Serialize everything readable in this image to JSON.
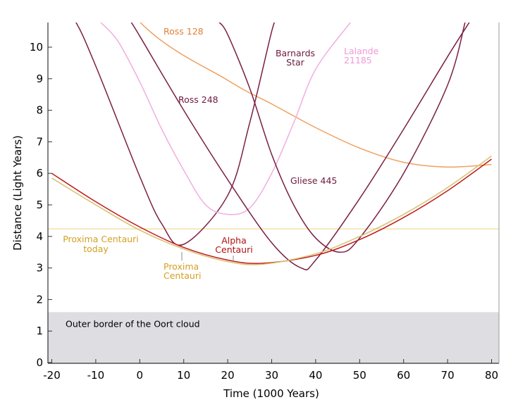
{
  "chart_data": {
    "type": "line",
    "xlabel": "Time (1000 Years)",
    "ylabel": "Distance (Light Years)",
    "xlim": [
      -21,
      81
    ],
    "ylim": [
      0,
      10.8
    ],
    "x_ticks": [
      -20,
      -10,
      0,
      10,
      20,
      30,
      40,
      50,
      60,
      70,
      80
    ],
    "x_tick_labels": [
      "-20",
      "-10",
      "0",
      "10",
      "20",
      "30",
      "40",
      "50",
      "60",
      "70",
      "80"
    ],
    "y_ticks": [
      0,
      1,
      2,
      3,
      4,
      5,
      6,
      7,
      8,
      9,
      10
    ],
    "y_tick_labels": [
      "0",
      "1",
      "2",
      "3",
      "4",
      "5",
      "6",
      "7",
      "8",
      "9",
      "10"
    ],
    "reference_line": {
      "y": 4.24,
      "label": [
        "Proxima Centauri",
        "today"
      ],
      "color": "#f0dfa0"
    },
    "shaded_region": {
      "y_from": 0,
      "y_to": 1.6,
      "label": "Outer border of the Oort cloud",
      "color": "#dddde2"
    },
    "series": [
      {
        "name": "Ross 128",
        "label_lines": [
          "Ross 128"
        ],
        "color": "#f0a060",
        "label_color": "#e0803a",
        "min_x": 71.5,
        "min_y": 6.2,
        "points": [
          [
            -20,
            14.6
          ],
          [
            0,
            10.8
          ],
          [
            20,
            8.95
          ],
          [
            30,
            8.2
          ],
          [
            40,
            7.45
          ],
          [
            50,
            6.8
          ],
          [
            60,
            6.35
          ],
          [
            70,
            6.2
          ],
          [
            80,
            6.28
          ]
        ]
      },
      {
        "name": "Barnards Star",
        "label_lines": [
          "Barnards",
          "Star"
        ],
        "color": "#7a1f45",
        "label_color": "#6e1a3e",
        "min_x": 9.9,
        "min_y": 3.75,
        "points": [
          [
            -20,
            11.6
          ],
          [
            -15,
            10.9
          ],
          [
            -10,
            9.4
          ],
          [
            0,
            5.9
          ],
          [
            5,
            4.4
          ],
          [
            10,
            3.75
          ],
          [
            20,
            5.3
          ],
          [
            25,
            7.6
          ],
          [
            30,
            10.5
          ],
          [
            31,
            10.8
          ]
        ]
      },
      {
        "name": "Lalande 21185",
        "label_lines": [
          "Lalande",
          "21185"
        ],
        "color": "#f0aee0",
        "label_color": "#ee9ad8",
        "min_x": 20,
        "min_y": 4.7,
        "points": [
          [
            -9,
            10.8
          ],
          [
            -5,
            10.2
          ],
          [
            0,
            8.9
          ],
          [
            5,
            7.4
          ],
          [
            10,
            6.1
          ],
          [
            15,
            5.0
          ],
          [
            20,
            4.7
          ],
          [
            25,
            4.9
          ],
          [
            30,
            6.0
          ],
          [
            35,
            7.6
          ],
          [
            40,
            9.3
          ],
          [
            48,
            10.8
          ]
        ]
      },
      {
        "name": "Ross 248",
        "label_lines": [
          "Ross 248"
        ],
        "color": "#7a1f45",
        "label_color": "#6e1a3e",
        "min_x": 36.7,
        "min_y": 3.0,
        "points": [
          [
            -2,
            10.8
          ],
          [
            0,
            10.35
          ],
          [
            10,
            8.0
          ],
          [
            20,
            5.8
          ],
          [
            30,
            3.8
          ],
          [
            36.7,
            3.0
          ],
          [
            40,
            3.25
          ],
          [
            50,
            5.2
          ],
          [
            60,
            7.4
          ],
          [
            70,
            9.7
          ],
          [
            75,
            10.8
          ]
        ]
      },
      {
        "name": "Gliese 445",
        "label_lines": [
          "Gliese 445"
        ],
        "color": "#7a1f45",
        "label_color": "#6e1a3e",
        "min_x": 45.5,
        "min_y": 3.5,
        "points": [
          [
            18,
            10.8
          ],
          [
            20,
            10.4
          ],
          [
            25,
            8.7
          ],
          [
            30,
            6.6
          ],
          [
            35,
            5.0
          ],
          [
            40,
            3.95
          ],
          [
            45.5,
            3.5
          ],
          [
            50,
            3.95
          ],
          [
            60,
            6.0
          ],
          [
            70,
            8.8
          ],
          [
            74,
            10.8
          ]
        ]
      },
      {
        "name": "Alpha Centauri",
        "label_lines": [
          "Alpha",
          "Centauri"
        ],
        "color": "#c01a1a",
        "label_color": "#b01010",
        "min_x": 28,
        "min_y": 3.15,
        "points": [
          [
            -20,
            6.0
          ],
          [
            -10,
            5.1
          ],
          [
            0,
            4.3
          ],
          [
            10,
            3.65
          ],
          [
            20,
            3.25
          ],
          [
            28,
            3.15
          ],
          [
            40,
            3.4
          ],
          [
            50,
            3.9
          ],
          [
            60,
            4.6
          ],
          [
            70,
            5.45
          ],
          [
            80,
            6.45
          ]
        ]
      },
      {
        "name": "Proxima Centauri",
        "label_lines": [
          "Proxima",
          "Centauri"
        ],
        "color": "#d8c070",
        "label_color": "#d4a020",
        "min_x": 28,
        "min_y": 3.12,
        "points": [
          [
            -20,
            5.85
          ],
          [
            -10,
            5.0
          ],
          [
            0,
            4.2
          ],
          [
            10,
            3.6
          ],
          [
            20,
            3.2
          ],
          [
            28,
            3.12
          ],
          [
            40,
            3.45
          ],
          [
            50,
            4.0
          ],
          [
            60,
            4.7
          ],
          [
            70,
            5.55
          ],
          [
            80,
            6.55
          ]
        ]
      }
    ]
  }
}
